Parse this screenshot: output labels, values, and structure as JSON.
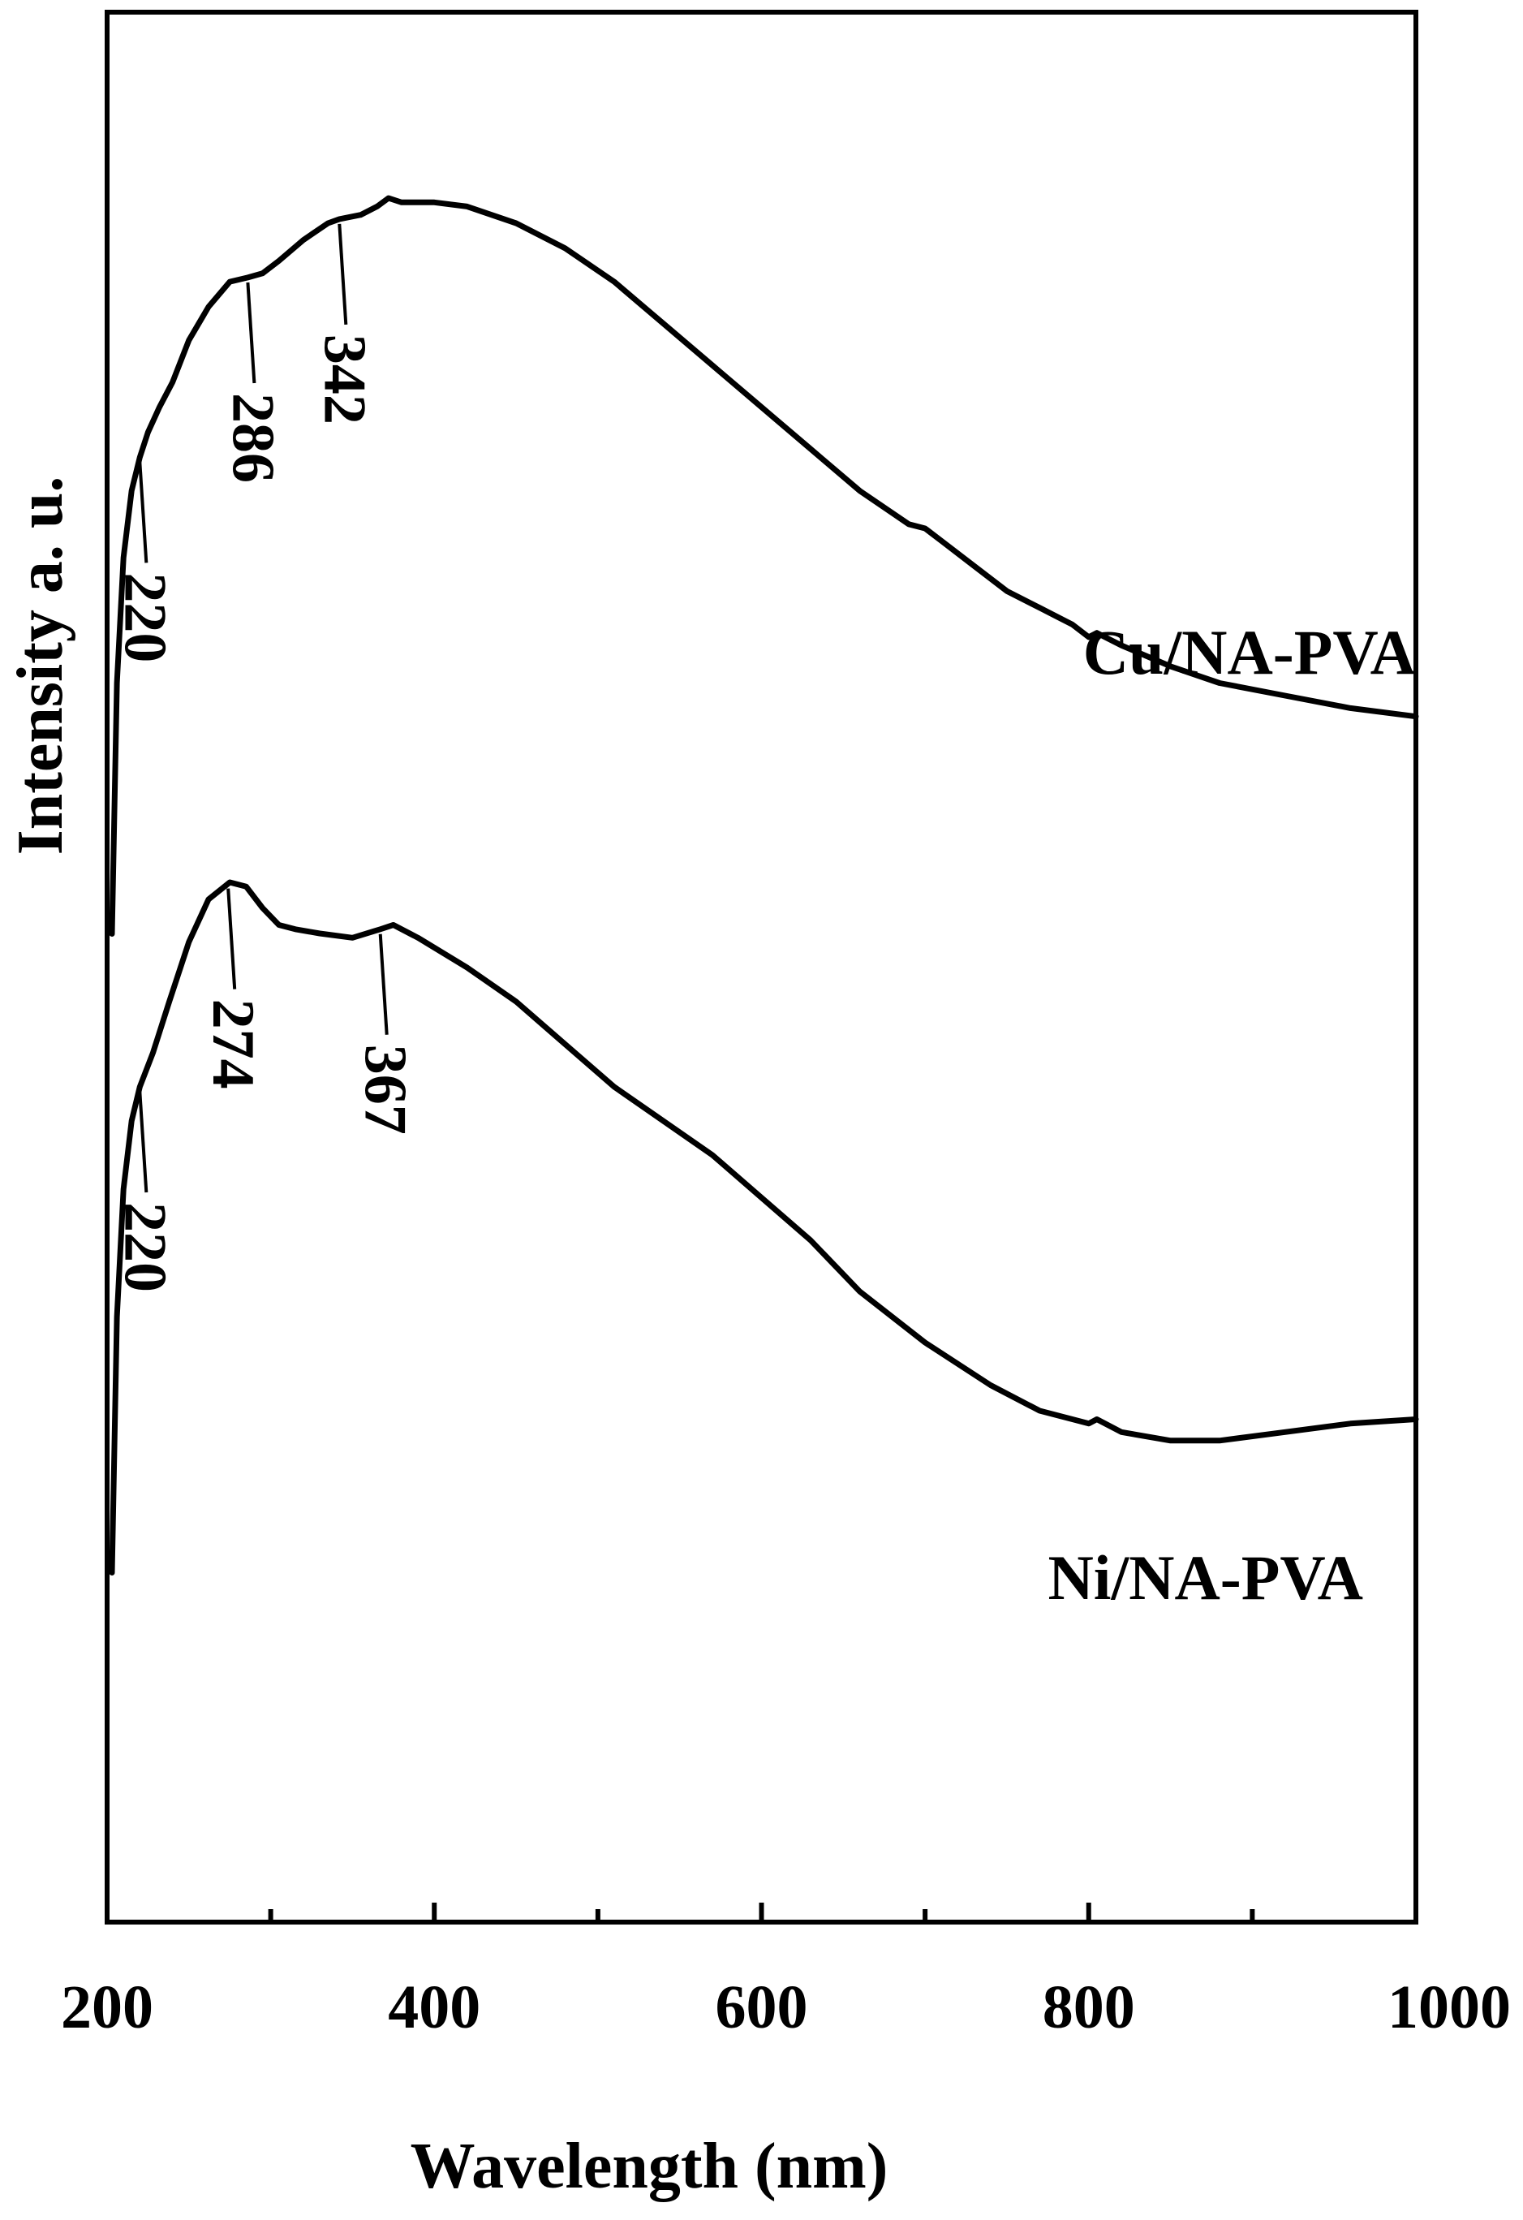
{
  "chart_data": {
    "type": "line",
    "title": "",
    "xlabel": "Wavelength (nm)",
    "ylabel": "Intensity a. u.",
    "xlim": [
      200,
      1000
    ],
    "x_major_ticks": [
      200,
      400,
      600,
      800,
      1000
    ],
    "x_minor_ticks": [
      300,
      500,
      700,
      900
    ],
    "y_ticks": [],
    "grid": false,
    "legend": "none",
    "series": [
      {
        "name": "Cu/NA-PVA",
        "points": [
          [
            203,
            0.15
          ],
          [
            206,
            0.45
          ],
          [
            210,
            0.6
          ],
          [
            215,
            0.68
          ],
          [
            220,
            0.72
          ],
          [
            225,
            0.75
          ],
          [
            232,
            0.78
          ],
          [
            240,
            0.81
          ],
          [
            250,
            0.86
          ],
          [
            262,
            0.9
          ],
          [
            275,
            0.93
          ],
          [
            286,
            0.935
          ],
          [
            295,
            0.94
          ],
          [
            305,
            0.955
          ],
          [
            320,
            0.98
          ],
          [
            335,
            1.0
          ],
          [
            342,
            1.005
          ],
          [
            355,
            1.01
          ],
          [
            365,
            1.02
          ],
          [
            372,
            1.03
          ],
          [
            380,
            1.025
          ],
          [
            400,
            1.025
          ],
          [
            420,
            1.02
          ],
          [
            450,
            1.0
          ],
          [
            480,
            0.97
          ],
          [
            510,
            0.93
          ],
          [
            540,
            0.88
          ],
          [
            570,
            0.83
          ],
          [
            600,
            0.78
          ],
          [
            630,
            0.73
          ],
          [
            660,
            0.68
          ],
          [
            690,
            0.64
          ],
          [
            700,
            0.635
          ],
          [
            710,
            0.62
          ],
          [
            730,
            0.59
          ],
          [
            750,
            0.56
          ],
          [
            770,
            0.54
          ],
          [
            790,
            0.52
          ],
          [
            800,
            0.505
          ],
          [
            805,
            0.51
          ],
          [
            820,
            0.495
          ],
          [
            850,
            0.47
          ],
          [
            880,
            0.45
          ],
          [
            920,
            0.435
          ],
          [
            960,
            0.42
          ],
          [
            1000,
            0.41
          ]
        ]
      },
      {
        "name": "Ni/NA-PVA",
        "points": [
          [
            203,
            0.15
          ],
          [
            206,
            0.45
          ],
          [
            210,
            0.6
          ],
          [
            215,
            0.68
          ],
          [
            220,
            0.72
          ],
          [
            228,
            0.76
          ],
          [
            238,
            0.82
          ],
          [
            250,
            0.89
          ],
          [
            262,
            0.94
          ],
          [
            275,
            0.96
          ],
          [
            285,
            0.955
          ],
          [
            295,
            0.93
          ],
          [
            305,
            0.91
          ],
          [
            315,
            0.905
          ],
          [
            330,
            0.9
          ],
          [
            350,
            0.895
          ],
          [
            367,
            0.905
          ],
          [
            375,
            0.91
          ],
          [
            390,
            0.895
          ],
          [
            420,
            0.86
          ],
          [
            450,
            0.82
          ],
          [
            480,
            0.77
          ],
          [
            510,
            0.72
          ],
          [
            540,
            0.68
          ],
          [
            570,
            0.64
          ],
          [
            600,
            0.59
          ],
          [
            630,
            0.54
          ],
          [
            660,
            0.48
          ],
          [
            700,
            0.42
          ],
          [
            740,
            0.37
          ],
          [
            770,
            0.34
          ],
          [
            800,
            0.325
          ],
          [
            805,
            0.33
          ],
          [
            820,
            0.315
          ],
          [
            850,
            0.305
          ],
          [
            880,
            0.305
          ],
          [
            920,
            0.315
          ],
          [
            960,
            0.325
          ],
          [
            1000,
            0.33
          ]
        ]
      }
    ],
    "annotations": [
      {
        "series": "Cu/NA-PVA",
        "x": 220,
        "text": "220"
      },
      {
        "series": "Cu/NA-PVA",
        "x": 286,
        "text": "286"
      },
      {
        "series": "Cu/NA-PVA",
        "x": 342,
        "text": "342"
      },
      {
        "series": "Ni/NA-PVA",
        "x": 220,
        "text": "220"
      },
      {
        "series": "Ni/NA-PVA",
        "x": 274,
        "text": "274"
      },
      {
        "series": "Ni/NA-PVA",
        "x": 367,
        "text": "367"
      }
    ]
  }
}
